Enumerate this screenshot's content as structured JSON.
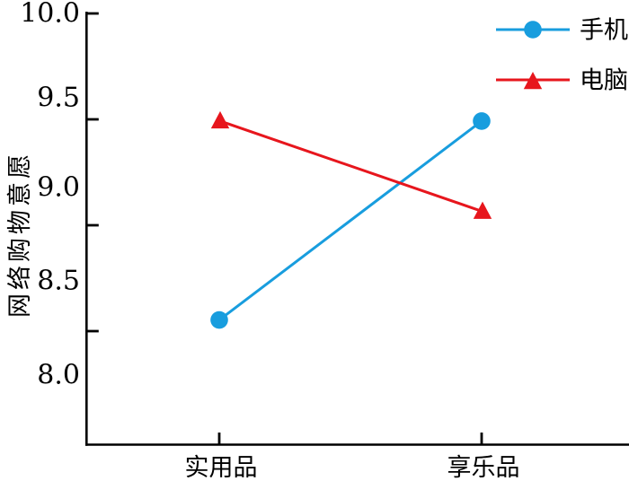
{
  "colors": {
    "series_phone": "#189dde",
    "series_computer": "#e7161d",
    "axis": "#000000",
    "background": "#ffffff"
  },
  "chart_data": {
    "type": "line",
    "title": "",
    "categories": [
      "实用品",
      "享乐品"
    ],
    "series": [
      {
        "name": "手机",
        "values": [
          8.3,
          9.4
        ],
        "color": "#189dde",
        "marker": "circle"
      },
      {
        "name": "电脑",
        "values": [
          9.4,
          8.9
        ],
        "color": "#e7161d",
        "marker": "triangle"
      }
    ],
    "xlabel": "",
    "ylabel": "网络购物意愿",
    "yticks": [
      10.0,
      9.5,
      9.0,
      8.5,
      8.0
    ],
    "yticklabels": [
      "10.0",
      "9.5",
      "9.0",
      "8.5",
      "8.0"
    ],
    "ylim": [
      7.6,
      10.0
    ],
    "grid": false,
    "legend_position": "top-right",
    "legend_entries": [
      "手机",
      "电脑"
    ]
  }
}
